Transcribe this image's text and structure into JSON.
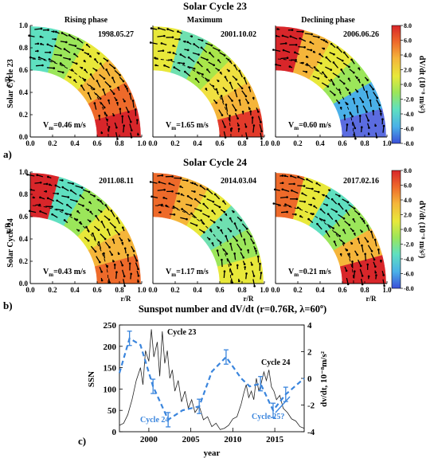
{
  "figure": {
    "section_a": {
      "title": "Solar Cycle 23",
      "row_label": "Solar Cycle 23",
      "panel_letter": "a)",
      "panels": [
        {
          "phase": "Rising phase",
          "date": "1998.05.27",
          "vm_prefix": "V",
          "vm_sub": "m",
          "vm_value": "=0.46 m/s"
        },
        {
          "phase": "Maximum",
          "date": "2001.10.02",
          "vm_prefix": "V",
          "vm_sub": "m",
          "vm_value": "=1.65 m/s"
        },
        {
          "phase": "Declining phase",
          "date": "2006.06.26",
          "vm_prefix": "V",
          "vm_sub": "m",
          "vm_value": "=0.60 m/s"
        }
      ]
    },
    "section_b": {
      "title": "Solar Cycle 24",
      "row_label": "Solar Cycle 24",
      "panel_letter": "b)",
      "panels": [
        {
          "date": "2011.08.11",
          "vm_prefix": "V",
          "vm_sub": "m",
          "vm_value": "=0.43 m/s"
        },
        {
          "date": "2014.03.04",
          "vm_prefix": "V",
          "vm_sub": "m",
          "vm_value": "=1.17 m/s"
        },
        {
          "date": "2017.02.16",
          "vm_prefix": "V",
          "vm_sub": "m",
          "vm_value": "=0.21 m/s"
        }
      ]
    },
    "polar_axes": {
      "x_ticks": [
        "0.0",
        "0.2",
        "0.4",
        "0.6",
        "0.8",
        "1.0"
      ],
      "y_ticks": [
        "0.0",
        "0.2",
        "0.4",
        "0.6",
        "0.8",
        "1.0"
      ],
      "x_label": "r/R",
      "y_label": "r/R"
    },
    "colorbar": {
      "label": "dV/dt (10⁻⁸ m/s²)",
      "ticks": [
        "8.0",
        "6.0",
        "4.0",
        "2.0",
        "0.0",
        "-2.0",
        "-4.0",
        "-6.0",
        "-8.0"
      ],
      "colors": [
        "#3a4fd8",
        "#4ab0e8",
        "#5fe0c0",
        "#9be65a",
        "#e8e83a",
        "#f5b53a",
        "#ee6a2a",
        "#d8262a"
      ]
    },
    "section_c": {
      "panel_letter": "c)",
      "title_main": "Sunspot number and dV/dt (r=0.76R,",
      "title_lambda": "λ=60",
      "title_deg": "o",
      "title_close": ")",
      "cycle23_label": "Cycle 23",
      "cycle24_label": "Cycle 24",
      "cycle24_blue_label": "Cycle 24",
      "cycle25_label": "Cycle 25?",
      "ylabel_left": "SSN",
      "ylabel_right": "dv/dt, 10⁻⁸m/s²",
      "xlabel": "year",
      "x_ticks": [
        "2000",
        "2005",
        "2010",
        "2015"
      ],
      "y_left_ticks": [
        "0",
        "50",
        "100",
        "150",
        "200",
        "250"
      ],
      "y_right_ticks": [
        "-4",
        "-2",
        "0",
        "2",
        "4"
      ]
    }
  },
  "chart_data": [
    {
      "type": "line",
      "xlabel": "year",
      "ylabel": "SSN",
      "xlim": [
        1996.5,
        2018.5
      ],
      "ylim": [
        0,
        250
      ],
      "series": [
        {
          "x": [
            1996.5,
            1997.0,
            1997.5,
            1998.0,
            1998.5,
            1999.0,
            1999.3,
            1999.6,
            2000.0,
            2000.3,
            2000.6,
            2001.0,
            2001.3,
            2001.6,
            2001.9,
            2002.2,
            2002.5,
            2002.8,
            2003.1,
            2003.5,
            2003.9,
            2004.3,
            2004.7,
            2005.1,
            2005.5,
            2006.0,
            2006.5,
            2007.0,
            2007.5,
            2008.0,
            2008.5,
            2009.0,
            2009.5,
            2010.0,
            2010.5,
            2011.0,
            2011.3,
            2011.6,
            2011.9,
            2012.2,
            2012.5,
            2012.8,
            2013.1,
            2013.4,
            2013.7,
            2014.0,
            2014.3,
            2014.6,
            2014.9,
            2015.2,
            2015.6,
            2016.0,
            2016.5,
            2017.0,
            2017.5,
            2018.0,
            2018.5
          ],
          "values": [
            15,
            20,
            40,
            75,
            120,
            150,
            110,
            190,
            165,
            240,
            175,
            210,
            130,
            235,
            160,
            190,
            125,
            145,
            95,
            120,
            70,
            95,
            55,
            75,
            45,
            60,
            28,
            35,
            12,
            20,
            5,
            8,
            15,
            30,
            35,
            65,
            90,
            110,
            80,
            95,
            75,
            125,
            95,
            115,
            140,
            120,
            145,
            105,
            95,
            75,
            85,
            55,
            45,
            30,
            25,
            12,
            8
          ]
        }
      ]
    },
    {
      "type": "line",
      "xlabel": "year",
      "ylabel": "dv/dt, 10⁻⁸m/s²",
      "xlim": [
        1996.5,
        2018.5
      ],
      "ylim": [
        -4,
        4
      ],
      "series": [
        {
          "x": [
            1996.5,
            1997.7,
            1999.0,
            2000.5,
            2002.3,
            2004.0,
            2006.0,
            2007.5,
            2009.2,
            2011.0,
            2012.0,
            2013.3,
            2014.8,
            2016.3,
            2018.5
          ],
          "values": [
            0.4,
            3.0,
            2.5,
            -0.6,
            -3.1,
            -2.4,
            -2.1,
            0.5,
            1.6,
            0.0,
            -0.6,
            -0.4,
            -2.4,
            -1.2,
            0.0
          ]
        }
      ]
    }
  ]
}
